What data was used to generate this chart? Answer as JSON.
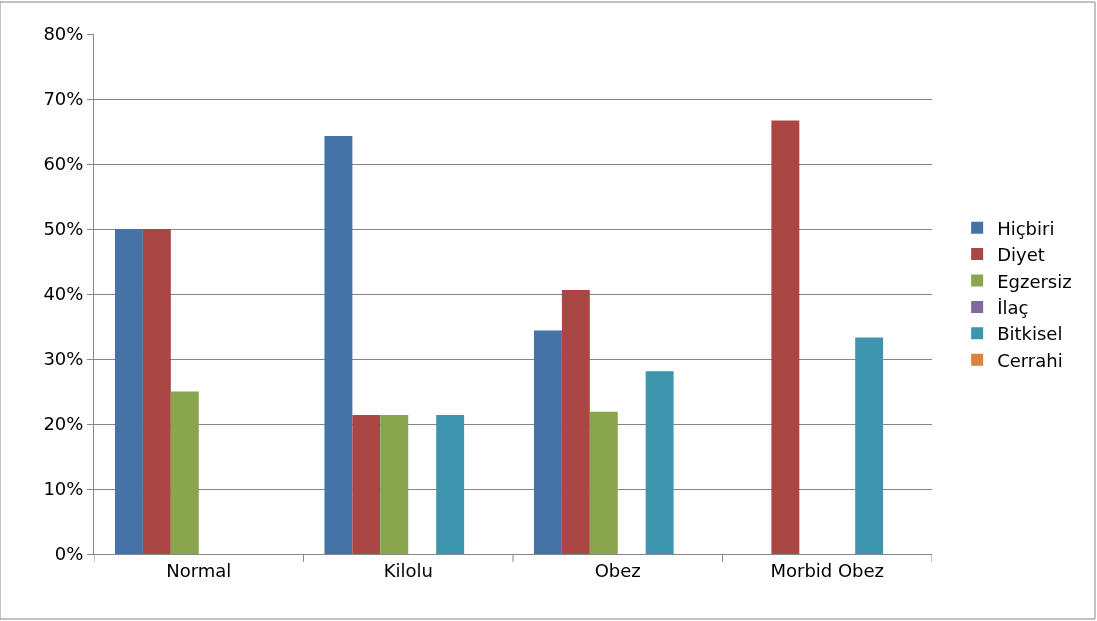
{
  "chart_data": {
    "type": "bar",
    "categories": [
      "Normal",
      "Kilolu",
      "Obez",
      "Morbid Obez"
    ],
    "series": [
      {
        "name": "Hiçbiri",
        "color": "#4572a7",
        "values": [
          50,
          64.3,
          34.4,
          0
        ]
      },
      {
        "name": "Diyet",
        "color": "#aa4643",
        "values": [
          50,
          21.4,
          40.6,
          66.7
        ]
      },
      {
        "name": "Egzersiz",
        "color": "#89a54e",
        "values": [
          25,
          21.4,
          21.9,
          0
        ]
      },
      {
        "name": "İlaç",
        "color": "#80699b",
        "values": [
          0,
          0,
          0,
          0
        ]
      },
      {
        "name": "Bitkisel",
        "color": "#3d96ae",
        "values": [
          0,
          21.4,
          28.1,
          33.3
        ]
      },
      {
        "name": "Cerrahi",
        "color": "#db843d",
        "values": [
          0,
          0,
          0,
          0
        ]
      }
    ],
    "ylim": [
      0,
      80
    ],
    "yticks": [
      {
        "value": 0,
        "label": "0%"
      },
      {
        "value": 10,
        "label": "10%"
      },
      {
        "value": 20,
        "label": "20%"
      },
      {
        "value": 30,
        "label": "30%"
      },
      {
        "value": 40,
        "label": "40%"
      },
      {
        "value": 50,
        "label": "50%"
      },
      {
        "value": 60,
        "label": "60%"
      },
      {
        "value": 70,
        "label": "70%"
      },
      {
        "value": 80,
        "label": "80%"
      }
    ],
    "grid": "y",
    "legend": "right"
  }
}
